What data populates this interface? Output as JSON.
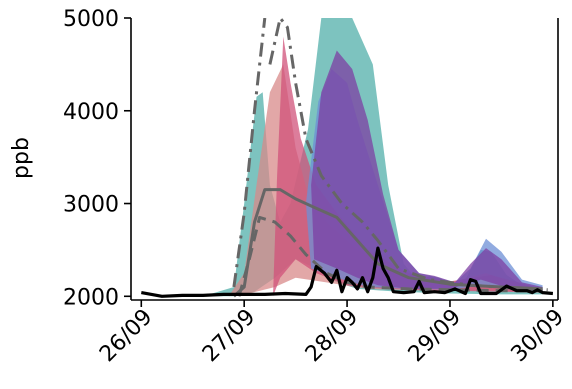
{
  "chart_data": {
    "type": "area",
    "title": "",
    "xlabel": "",
    "ylabel": "ppb",
    "x_ticks": [
      "26/09",
      "27/09",
      "28/09",
      "29/09",
      "30/09"
    ],
    "y_ticks": [
      2000,
      3000,
      4000,
      5000
    ],
    "xlim": [
      -0.1,
      4.05
    ],
    "ylim": [
      1960,
      5000
    ],
    "grid": false,
    "legend": "none",
    "bands": [
      {
        "color": "#6fbcb8",
        "lower": [
          [
            0.6,
            2000
          ],
          [
            0.9,
            2000
          ],
          [
            1.1,
            2050
          ],
          [
            1.3,
            2200
          ],
          [
            1.5,
            2400
          ],
          [
            1.7,
            2300
          ],
          [
            1.9,
            2150
          ],
          [
            2.1,
            2080
          ],
          [
            2.5,
            2050
          ],
          [
            3.0,
            2030
          ],
          [
            3.5,
            2020
          ],
          [
            3.9,
            2020
          ]
        ],
        "upper": [
          [
            0.6,
            2000
          ],
          [
            0.9,
            2100
          ],
          [
            1.0,
            3000
          ],
          [
            1.12,
            4150
          ],
          [
            1.18,
            4200
          ],
          [
            1.25,
            3200
          ],
          [
            1.35,
            2800
          ],
          [
            1.45,
            3000
          ],
          [
            1.62,
            3800
          ],
          [
            1.75,
            5000
          ],
          [
            2.05,
            5000
          ],
          [
            2.25,
            4500
          ],
          [
            2.4,
            3200
          ],
          [
            2.55,
            2350
          ],
          [
            2.7,
            2150
          ],
          [
            2.8,
            2220
          ],
          [
            2.9,
            2200
          ],
          [
            3.0,
            2120
          ],
          [
            3.15,
            2180
          ],
          [
            3.3,
            2500
          ],
          [
            3.4,
            2480
          ],
          [
            3.55,
            2230
          ],
          [
            3.7,
            2120
          ],
          [
            3.9,
            2100
          ]
        ]
      },
      {
        "color": "#d88a8a",
        "lower": [
          [
            0.85,
            2000
          ],
          [
            1.05,
            2030
          ],
          [
            1.3,
            2100
          ],
          [
            1.5,
            2200
          ],
          [
            1.8,
            2150
          ],
          [
            2.2,
            2080
          ],
          [
            2.8,
            2060
          ],
          [
            3.4,
            2060
          ],
          [
            3.9,
            2040
          ]
        ],
        "upper": [
          [
            0.85,
            2000
          ],
          [
            1.0,
            2250
          ],
          [
            1.12,
            3200
          ],
          [
            1.25,
            4200
          ],
          [
            1.38,
            4500
          ],
          [
            1.5,
            3600
          ],
          [
            1.62,
            3100
          ],
          [
            1.8,
            2800
          ],
          [
            2.1,
            2500
          ],
          [
            2.5,
            2250
          ],
          [
            3.0,
            2150
          ],
          [
            3.35,
            2250
          ],
          [
            3.6,
            2150
          ],
          [
            3.9,
            2080
          ]
        ]
      },
      {
        "color": "#d0517a",
        "lower": [
          [
            1.28,
            2000
          ],
          [
            1.35,
            2200
          ],
          [
            1.5,
            2400
          ],
          [
            1.7,
            2250
          ],
          [
            2.0,
            2120
          ],
          [
            2.4,
            2080
          ],
          [
            3.0,
            2060
          ],
          [
            3.9,
            2040
          ]
        ],
        "upper": [
          [
            1.28,
            2000
          ],
          [
            1.32,
            3300
          ],
          [
            1.38,
            4800
          ],
          [
            1.45,
            4300
          ],
          [
            1.55,
            3700
          ],
          [
            1.7,
            3200
          ],
          [
            1.9,
            2900
          ],
          [
            2.2,
            2500
          ],
          [
            2.6,
            2250
          ],
          [
            3.0,
            2160
          ],
          [
            3.4,
            2230
          ],
          [
            3.9,
            2080
          ]
        ]
      },
      {
        "color": "#6c8fd6",
        "lower": [
          [
            1.65,
            2300
          ],
          [
            1.9,
            2200
          ],
          [
            2.2,
            2100
          ],
          [
            2.6,
            2080
          ],
          [
            3.0,
            2070
          ],
          [
            3.3,
            2120
          ],
          [
            3.6,
            2070
          ],
          [
            3.9,
            2050
          ]
        ],
        "upper": [
          [
            1.6,
            3000
          ],
          [
            1.72,
            4100
          ],
          [
            1.85,
            4450
          ],
          [
            2.0,
            4300
          ],
          [
            2.1,
            3900
          ],
          [
            2.3,
            3200
          ],
          [
            2.5,
            2500
          ],
          [
            2.7,
            2250
          ],
          [
            2.85,
            2210
          ],
          [
            3.05,
            2150
          ],
          [
            3.2,
            2300
          ],
          [
            3.35,
            2620
          ],
          [
            3.5,
            2480
          ],
          [
            3.7,
            2180
          ],
          [
            3.9,
            2120
          ]
        ]
      },
      {
        "color": "#7d3fa3",
        "lower": [
          [
            1.68,
            2400
          ],
          [
            1.9,
            2300
          ],
          [
            2.1,
            2200
          ],
          [
            2.3,
            2120
          ],
          [
            2.6,
            2080
          ],
          [
            3.0,
            2080
          ],
          [
            3.3,
            2180
          ],
          [
            3.6,
            2080
          ],
          [
            3.9,
            2060
          ]
        ],
        "upper": [
          [
            1.65,
            3200
          ],
          [
            1.75,
            4200
          ],
          [
            1.9,
            4650
          ],
          [
            2.05,
            4450
          ],
          [
            2.2,
            3900
          ],
          [
            2.35,
            3100
          ],
          [
            2.5,
            2500
          ],
          [
            2.7,
            2250
          ],
          [
            2.85,
            2220
          ],
          [
            3.05,
            2150
          ],
          [
            3.2,
            2350
          ],
          [
            3.35,
            2520
          ],
          [
            3.5,
            2400
          ],
          [
            3.7,
            2150
          ],
          [
            3.9,
            2100
          ]
        ]
      }
    ],
    "series": [
      {
        "style": "solid-black",
        "values": [
          [
            0,
            2040
          ],
          [
            0.1,
            2020
          ],
          [
            0.2,
            2000
          ],
          [
            0.4,
            2010
          ],
          [
            0.6,
            2010
          ],
          [
            0.8,
            2020
          ],
          [
            1.0,
            2020
          ],
          [
            1.2,
            2020
          ],
          [
            1.4,
            2030
          ],
          [
            1.6,
            2020
          ],
          [
            1.65,
            2100
          ],
          [
            1.7,
            2320
          ],
          [
            1.78,
            2250
          ],
          [
            1.85,
            2150
          ],
          [
            1.9,
            2280
          ],
          [
            1.95,
            2050
          ],
          [
            2.0,
            2200
          ],
          [
            2.05,
            2150
          ],
          [
            2.1,
            2080
          ],
          [
            2.15,
            2200
          ],
          [
            2.2,
            2050
          ],
          [
            2.25,
            2200
          ],
          [
            2.3,
            2520
          ],
          [
            2.35,
            2300
          ],
          [
            2.4,
            2200
          ],
          [
            2.45,
            2050
          ],
          [
            2.55,
            2040
          ],
          [
            2.65,
            2050
          ],
          [
            2.7,
            2160
          ],
          [
            2.75,
            2040
          ],
          [
            2.85,
            2050
          ],
          [
            2.95,
            2040
          ],
          [
            3.05,
            2080
          ],
          [
            3.15,
            2030
          ],
          [
            3.2,
            2180
          ],
          [
            3.25,
            2160
          ],
          [
            3.3,
            2030
          ],
          [
            3.45,
            2030
          ],
          [
            3.55,
            2110
          ],
          [
            3.65,
            2060
          ],
          [
            3.75,
            2060
          ],
          [
            3.8,
            2040
          ],
          [
            3.85,
            2070
          ],
          [
            3.9,
            2040
          ],
          [
            4.0,
            2030
          ]
        ]
      },
      {
        "style": "solid-grey",
        "values": [
          [
            0.9,
            2000
          ],
          [
            1.0,
            2100
          ],
          [
            1.1,
            2800
          ],
          [
            1.2,
            3150
          ],
          [
            1.35,
            3150
          ],
          [
            1.5,
            3050
          ],
          [
            1.7,
            2950
          ],
          [
            1.9,
            2850
          ],
          [
            2.1,
            2600
          ],
          [
            2.3,
            2350
          ],
          [
            2.6,
            2200
          ],
          [
            3.0,
            2130
          ],
          [
            3.5,
            2100
          ],
          [
            3.9,
            2080
          ]
        ]
      },
      {
        "style": "dashed-grey",
        "values": [
          [
            0.95,
            2000
          ],
          [
            1.05,
            2400
          ],
          [
            1.15,
            2850
          ],
          [
            1.3,
            2800
          ],
          [
            1.45,
            2650
          ],
          [
            1.6,
            2450
          ],
          [
            1.8,
            2250
          ],
          [
            2.0,
            2150
          ],
          [
            2.2,
            2100
          ],
          [
            2.6,
            2080
          ],
          [
            3.0,
            2070
          ],
          [
            3.5,
            2060
          ],
          [
            3.9,
            2060
          ]
        ]
      },
      {
        "style": "dashdot-grey-a",
        "values": [
          [
            0.9,
            2100
          ],
          [
            1.0,
            2900
          ],
          [
            1.1,
            4000
          ],
          [
            1.2,
            5000
          ]
        ]
      },
      {
        "style": "dashdot-grey-b",
        "values": [
          [
            1.25,
            4500
          ],
          [
            1.35,
            5000
          ],
          [
            1.42,
            4900
          ],
          [
            1.5,
            4300
          ],
          [
            1.6,
            3700
          ],
          [
            1.75,
            3300
          ],
          [
            1.95,
            3000
          ],
          [
            2.15,
            2800
          ],
          [
            2.3,
            2600
          ],
          [
            2.5,
            2300
          ],
          [
            2.8,
            2180
          ],
          [
            3.2,
            2120
          ],
          [
            3.6,
            2090
          ],
          [
            3.95,
            2070
          ]
        ]
      }
    ]
  }
}
